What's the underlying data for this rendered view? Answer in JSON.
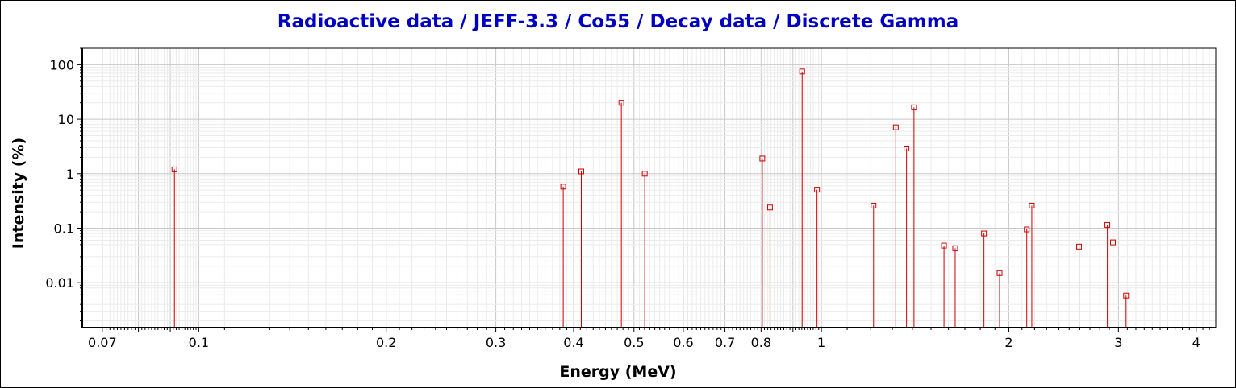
{
  "chart_data": {
    "type": "scatter",
    "title": "Radioactive data / JEFF-3.3 / Co55 / Decay data / Discrete Gamma",
    "xlabel": "Energy (MeV)",
    "ylabel": "Intensity (%)",
    "x_scale": "log",
    "y_scale": "log",
    "xlim": [
      0.065,
      4.3
    ],
    "ylim": [
      0.0015,
      200
    ],
    "grid": true,
    "x_tick_labels": [
      "0.07",
      "0.1",
      "0.2",
      "0.3",
      "0.4",
      "0.5",
      "0.6",
      "0.7",
      "0.8",
      "1",
      "2",
      "3",
      "4"
    ],
    "y_tick_labels": [
      "0.01",
      "0.1",
      "1",
      "10",
      "100"
    ],
    "colors": {
      "title": "#0000c0",
      "series": "#cc0000",
      "grid_major": "#c8c8c8",
      "grid_minor": "#ebebeb"
    },
    "series": [
      {
        "x": [
          0.0914,
          0.3849,
          0.4115,
          0.4772,
          0.5203,
          0.8037,
          0.8269,
          0.9312,
          0.9838,
          1.2127,
          1.3166,
          1.37,
          1.4083,
          1.5736,
          1.6402,
          1.8245,
          1.9329,
          2.1375,
          2.1775,
          2.5936,
          2.8796,
          2.9397,
          3.0857
        ],
        "y": [
          1.2,
          0.58,
          1.1,
          20,
          1.0,
          1.9,
          0.24,
          75,
          0.51,
          0.26,
          7.1,
          2.9,
          16.5,
          0.048,
          0.043,
          0.08,
          0.015,
          0.095,
          0.26,
          0.046,
          0.115,
          0.055,
          0.0058
        ]
      }
    ]
  }
}
